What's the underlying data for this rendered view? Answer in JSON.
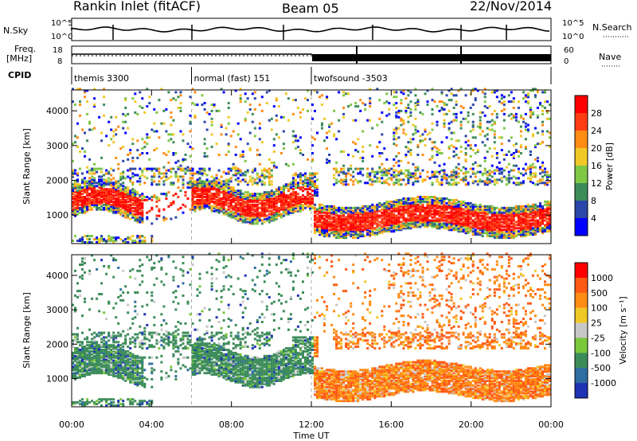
{
  "header": {
    "title": "Rankin Inlet (fitACF)",
    "beam": "Beam 05",
    "date": "22/Nov/2014"
  },
  "top_panels": {
    "nsky_label": "N.Sky",
    "nsky_ticks": [
      "10^5",
      "10^0"
    ],
    "nsearch_label": "N.Search",
    "nsearch_ticks": [
      "10^5",
      "10^0"
    ],
    "freq_label_1": "Freq.",
    "freq_label_2": "[MHz]",
    "freq_ticks": [
      "18",
      "8"
    ],
    "nave_label": "Nave",
    "nave_ticks": [
      "60",
      "0"
    ],
    "cpid_label": "CPID"
  },
  "cpid_segments": [
    {
      "label": "themis 3300",
      "start_hour": 0
    },
    {
      "label": "normal (fast) 151",
      "start_hour": 6
    },
    {
      "label": "twofsound -3503",
      "start_hour": 12
    }
  ],
  "chart_data": [
    {
      "type": "heatmap",
      "name": "power",
      "ylabel": "Slant Range [km]",
      "yticks": [
        "1000",
        "2000",
        "3000",
        "4000"
      ],
      "ylim": [
        180,
        4600
      ],
      "xlim": [
        0,
        24
      ],
      "colorbar_label": "Power [dB]",
      "colorbar_ticks": [
        "28",
        "24",
        "20",
        "16",
        "12",
        "8",
        "4"
      ],
      "colors": [
        "#0000ff",
        "#2a46a8",
        "#3c8c5a",
        "#7fc846",
        "#f0c828",
        "#ff8c14",
        "#ff3c14",
        "#ff0000"
      ]
    },
    {
      "type": "heatmap",
      "name": "velocity",
      "ylabel": "Slant Range [km]",
      "yticks": [
        "1000",
        "2000",
        "3000",
        "4000"
      ],
      "ylim": [
        180,
        4600
      ],
      "xlim": [
        0,
        24
      ],
      "colorbar_label": "Velocity [m s⁻¹]",
      "colorbar_ticks": [
        "1000",
        "500",
        "100",
        "25",
        "-25",
        "-100",
        "-500",
        "-1000"
      ],
      "colors": [
        "#1e32b4",
        "#2e6ea0",
        "#3c8c5a",
        "#7ac83c",
        "#c8c8c8",
        "#f0c828",
        "#ff8c14",
        "#ff5a14",
        "#ff0000"
      ]
    }
  ],
  "xaxis": {
    "ticks": [
      "00:00",
      "04:00",
      "08:00",
      "12:00",
      "16:00",
      "20:00",
      "00:00"
    ],
    "tick_hours": [
      0,
      4,
      8,
      12,
      16,
      20,
      24
    ],
    "label": "Time UT"
  }
}
